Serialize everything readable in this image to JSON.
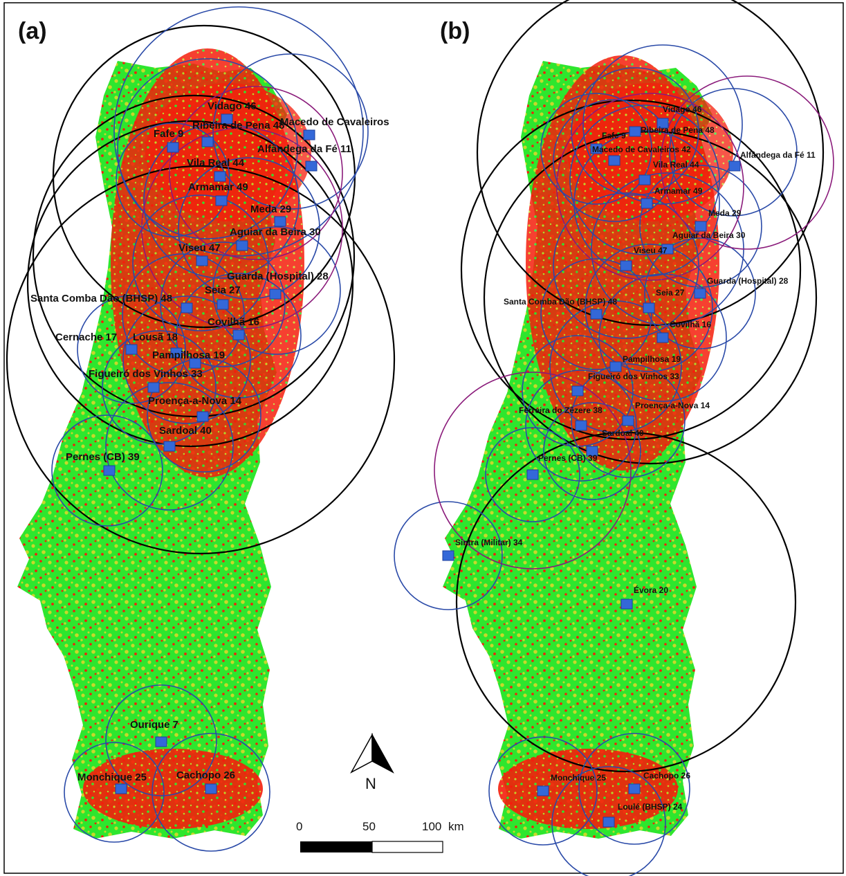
{
  "panels": {
    "a": {
      "letter": "(a)",
      "sites": [
        {
          "id": "vidago",
          "label": "Vidago 46"
        },
        {
          "id": "ribeira",
          "label": "Ribeira de Pena 48"
        },
        {
          "id": "macedo",
          "label": "Macedo de Cavaleiros"
        },
        {
          "id": "fafe",
          "label": "Fafe 9"
        },
        {
          "id": "alfandega",
          "label": "Alfândega da Fé 11"
        },
        {
          "id": "vilareal",
          "label": "Vila Real 44"
        },
        {
          "id": "armamar",
          "label": "Armamar 49"
        },
        {
          "id": "meda",
          "label": "Meda 29"
        },
        {
          "id": "aguiar",
          "label": "Aguiar da Beira 30"
        },
        {
          "id": "viseu",
          "label": "Viseu 47"
        },
        {
          "id": "guarda",
          "label": "Guarda (Hospital) 28"
        },
        {
          "id": "seia",
          "label": "Seia 27"
        },
        {
          "id": "santacomba",
          "label": "Santa Comba Dão (BHSP) 48"
        },
        {
          "id": "covilha",
          "label": "Covilhã 16"
        },
        {
          "id": "cernache",
          "label": "Cernache 17"
        },
        {
          "id": "lousa",
          "label": "Lousã 18"
        },
        {
          "id": "pampilhosa",
          "label": "Pampilhosa 19"
        },
        {
          "id": "figueiro",
          "label": "Figueiró dos Vinhos 33"
        },
        {
          "id": "proenca",
          "label": "Proença-a-Nova 14"
        },
        {
          "id": "sardoal",
          "label": "Sardoal 40"
        },
        {
          "id": "pernes",
          "label": "Pernes (CB) 39"
        },
        {
          "id": "ourique",
          "label": "Ourique 7"
        },
        {
          "id": "monchique",
          "label": "Monchique 25"
        },
        {
          "id": "cachopo",
          "label": "Cachopo 26"
        }
      ]
    },
    "b": {
      "letter": "(b)",
      "sites": [
        {
          "id": "vidago",
          "label": "Vidago 46"
        },
        {
          "id": "fafe",
          "label": "Fafe 9"
        },
        {
          "id": "ribeira",
          "label": "Ribeira de Pena 48"
        },
        {
          "id": "macedo",
          "label": "Macedo de Cavaleiros 42"
        },
        {
          "id": "alfandega",
          "label": "Alfândega da Fé 11"
        },
        {
          "id": "vilareal",
          "label": "Vila Real 44"
        },
        {
          "id": "armamar",
          "label": "Armamar 49"
        },
        {
          "id": "meda",
          "label": "Meda 29"
        },
        {
          "id": "aguiar",
          "label": "Aguiar da Beira 30"
        },
        {
          "id": "viseu",
          "label": "Viseu 47"
        },
        {
          "id": "guarda",
          "label": "Guarda (Hospital) 28"
        },
        {
          "id": "santacomba",
          "label": "Santa Comba Dão (BHSP) 48"
        },
        {
          "id": "seia",
          "label": "Seia 27"
        },
        {
          "id": "covilha",
          "label": "Covilhã 16"
        },
        {
          "id": "pampilhosa",
          "label": "Pampilhosa 19"
        },
        {
          "id": "figueiro",
          "label": "Figueiró dos Vinhos 33"
        },
        {
          "id": "ferreira",
          "label": "Ferreira do Zêzere 38"
        },
        {
          "id": "proenca",
          "label": "Proença-a-Nova 14"
        },
        {
          "id": "sardoal",
          "label": "Sardoal 40"
        },
        {
          "id": "pernes",
          "label": "Pernes (CB) 39"
        },
        {
          "id": "sintra",
          "label": "Sintra (Militar) 34"
        },
        {
          "id": "evora",
          "label": "Évora 20"
        },
        {
          "id": "monchique",
          "label": "Monchique 25"
        },
        {
          "id": "cachopo",
          "label": "Cachopo 26"
        },
        {
          "id": "loule",
          "label": "Loulé (BHSP) 24"
        }
      ]
    }
  },
  "north_arrow": {
    "label": "N"
  },
  "scale_bar": {
    "ticks": [
      "0",
      "50",
      "100"
    ],
    "unit": "km"
  },
  "colors": {
    "land_green": "#2ee62e",
    "land_yellow": "#c8d82a",
    "land_red": "#f41e0c",
    "circle_black": "#000000",
    "circle_blue": "#2a4aa8",
    "circle_purple": "#8a1a7a",
    "marker_blue": "#3468d8"
  }
}
